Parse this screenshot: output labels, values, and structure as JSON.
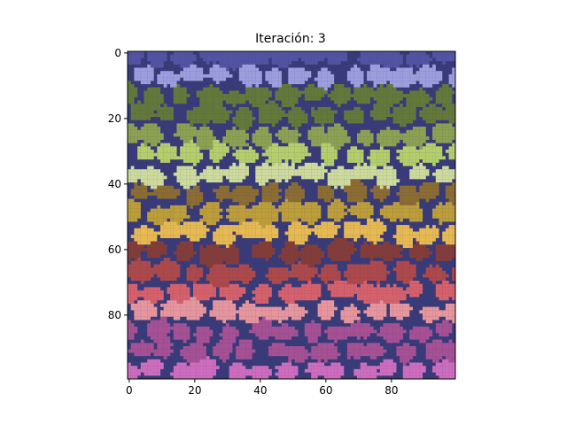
{
  "chart_data": {
    "type": "heatmap",
    "title": "Iteración: 3",
    "xlabel": "",
    "ylabel": "",
    "grid_size": [
      100,
      100
    ],
    "xlim": [
      -0.5,
      99.5
    ],
    "ylim": [
      99.5,
      -0.5
    ],
    "x_ticks": [
      0,
      20,
      40,
      60,
      80
    ],
    "y_ticks": [
      0,
      20,
      40,
      60,
      80
    ],
    "x_tick_labels": [
      "0",
      "20",
      "40",
      "60",
      "80"
    ],
    "y_tick_labels": [
      "0",
      "20",
      "40",
      "60",
      "80"
    ],
    "colormap": "tab20b",
    "background_color": "#393b79",
    "grid": false,
    "band_colors_top_to_bottom": [
      {
        "rows": [
          0,
          5
        ],
        "color": "#5254a3"
      },
      {
        "rows": [
          6,
          11
        ],
        "color": "#9c9ede"
      },
      {
        "rows": [
          12,
          19
        ],
        "color": "#637939"
      },
      {
        "rows": [
          20,
          27
        ],
        "color": "#8ca252"
      },
      {
        "rows": [
          28,
          34
        ],
        "color": "#b5cf6b"
      },
      {
        "rows": [
          35,
          40
        ],
        "color": "#cedb9c"
      },
      {
        "rows": [
          40,
          46
        ],
        "color": "#8c6d31"
      },
      {
        "rows": [
          47,
          53
        ],
        "color": "#bd9e39"
      },
      {
        "rows": [
          54,
          59
        ],
        "color": "#e7ba52"
      },
      {
        "rows": [
          60,
          65
        ],
        "color": "#843c39"
      },
      {
        "rows": [
          66,
          71
        ],
        "color": "#ad494a"
      },
      {
        "rows": [
          72,
          77
        ],
        "color": "#d6616b"
      },
      {
        "rows": [
          78,
          84
        ],
        "color": "#e7969c"
      },
      {
        "rows": [
          85,
          91
        ],
        "color": "#a55194"
      },
      {
        "rows": [
          92,
          99
        ],
        "color": "#ce6dbd"
      }
    ]
  }
}
